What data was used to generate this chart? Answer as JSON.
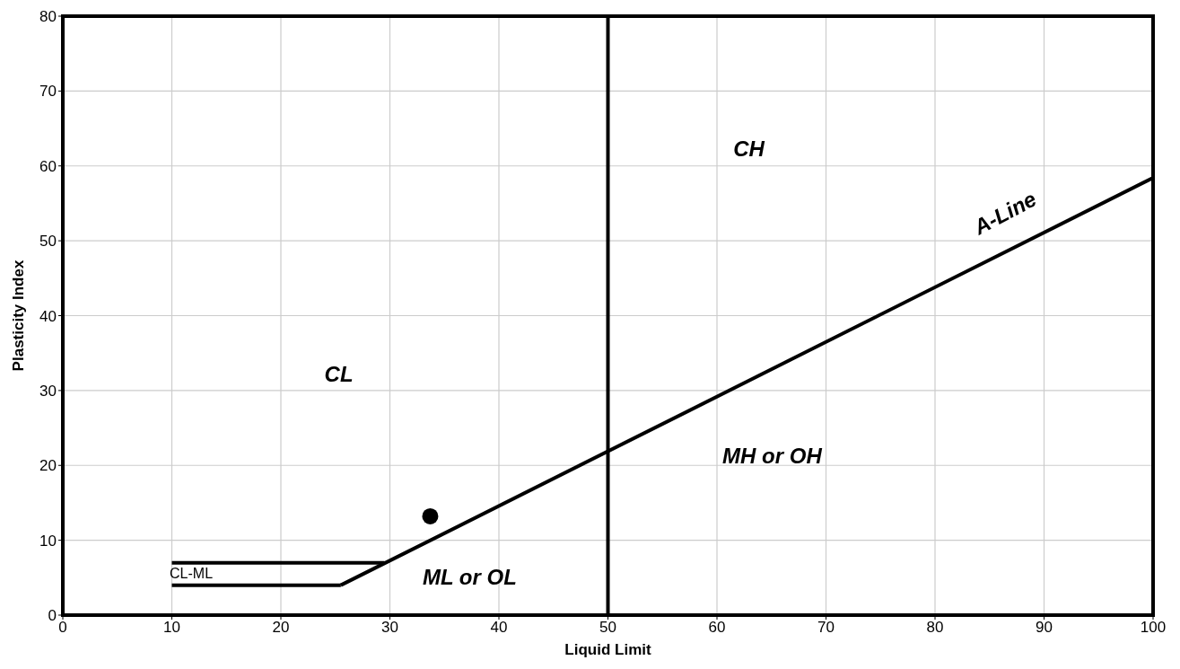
{
  "chart_data": {
    "type": "line",
    "xlabel": "Liquid Limit",
    "ylabel": "Plasticity Index",
    "xlim": [
      0,
      100
    ],
    "xticks": [
      0,
      10,
      20,
      30,
      40,
      50,
      60,
      70,
      80,
      90,
      100
    ],
    "ylim": [
      0,
      80
    ],
    "yticks": [
      0,
      10,
      20,
      30,
      40,
      50,
      60,
      70,
      80
    ],
    "grid": true,
    "line_style": "solid",
    "series": [
      {
        "color": "#000000",
        "marker": "none",
        "x": [
          10,
          29.5
        ],
        "values": [
          7,
          7
        ]
      },
      {
        "color": "#000000",
        "marker": "none",
        "x": [
          10,
          25.5
        ],
        "values": [
          4,
          4
        ]
      },
      {
        "color": "#000000",
        "marker": "none",
        "x": [
          25.5,
          100
        ],
        "values": [
          4,
          58.4
        ]
      },
      {
        "type": "scatter",
        "color": "#000000",
        "marker": "circle",
        "x": [
          33.7
        ],
        "values": [
          13.2
        ]
      }
    ],
    "ref_lines": [
      {
        "axis": "x",
        "value": 50,
        "color": "#000000"
      }
    ],
    "annotations": [
      "CL",
      "CH",
      "MH or OH",
      "ML or OL",
      "CL-ML",
      "A-Line"
    ]
  }
}
